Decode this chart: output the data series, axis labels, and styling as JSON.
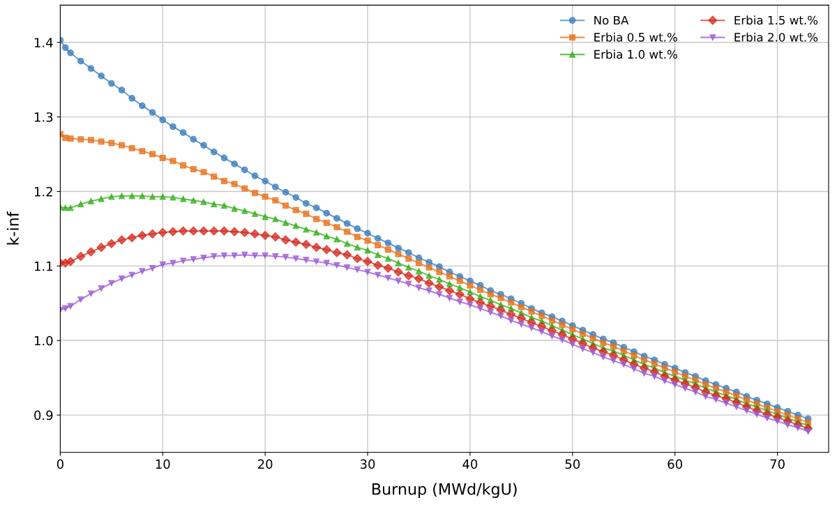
{
  "chart_data": {
    "type": "line",
    "xlabel": "Burnup (MWd/kgU)",
    "ylabel": "k-inf",
    "x": [
      0,
      0.5,
      1,
      2,
      3,
      4,
      5,
      6,
      7,
      8,
      9,
      10,
      11,
      12,
      13,
      14,
      15,
      16,
      17,
      18,
      19,
      20,
      21,
      22,
      23,
      24,
      25,
      26,
      27,
      28,
      29,
      30,
      31,
      32,
      33,
      34,
      35,
      36,
      37,
      38,
      39,
      40,
      41,
      42,
      43,
      44,
      45,
      46,
      47,
      48,
      49,
      50,
      51,
      52,
      53,
      54,
      55,
      56,
      57,
      58,
      59,
      60,
      61,
      62,
      63,
      64,
      65,
      66,
      67,
      68,
      69,
      70,
      71,
      72,
      73
    ],
    "series": [
      {
        "name": "No BA",
        "color": "#3a7ebf",
        "marker": "circle",
        "values": [
          1.403,
          1.393,
          1.386,
          1.375,
          1.365,
          1.355,
          1.345,
          1.336,
          1.325,
          1.315,
          1.306,
          1.296,
          1.287,
          1.279,
          1.27,
          1.262,
          1.253,
          1.245,
          1.237,
          1.229,
          1.221,
          1.214,
          1.206,
          1.199,
          1.192,
          1.184,
          1.178,
          1.171,
          1.164,
          1.157,
          1.15,
          1.144,
          1.137,
          1.131,
          1.124,
          1.118,
          1.111,
          1.105,
          1.099,
          1.092,
          1.086,
          1.08,
          1.074,
          1.067,
          1.062,
          1.056,
          1.05,
          1.043,
          1.037,
          1.032,
          1.026,
          1.02,
          1.014,
          1.008,
          1.002,
          0.997,
          0.991,
          0.985,
          0.979,
          0.974,
          0.968,
          0.963,
          0.957,
          0.952,
          0.946,
          0.941,
          0.936,
          0.931,
          0.925,
          0.92,
          0.915,
          0.91,
          0.905,
          0.9,
          0.895
        ]
      },
      {
        "name": "Erbia 0.5 wt.%",
        "color": "#e8701a",
        "marker": "square",
        "values": [
          1.277,
          1.272,
          1.271,
          1.27,
          1.269,
          1.267,
          1.265,
          1.262,
          1.258,
          1.254,
          1.25,
          1.245,
          1.241,
          1.235,
          1.23,
          1.226,
          1.22,
          1.214,
          1.21,
          1.204,
          1.198,
          1.193,
          1.188,
          1.181,
          1.175,
          1.17,
          1.163,
          1.158,
          1.152,
          1.146,
          1.139,
          1.134,
          1.128,
          1.122,
          1.116,
          1.11,
          1.104,
          1.098,
          1.092,
          1.086,
          1.08,
          1.074,
          1.068,
          1.062,
          1.057,
          1.051,
          1.045,
          1.039,
          1.033,
          1.027,
          1.021,
          1.015,
          1.009,
          1.003,
          0.997,
          0.992,
          0.986,
          0.98,
          0.974,
          0.969,
          0.963,
          0.958,
          0.952,
          0.947,
          0.941,
          0.936,
          0.931,
          0.926,
          0.92,
          0.915,
          0.91,
          0.905,
          0.9,
          0.895,
          0.89
        ]
      },
      {
        "name": "Erbia 1.0 wt.%",
        "color": "#33b01a",
        "marker": "triangle",
        "values": [
          1.179,
          1.178,
          1.178,
          1.183,
          1.187,
          1.19,
          1.193,
          1.194,
          1.194,
          1.194,
          1.193,
          1.193,
          1.192,
          1.19,
          1.188,
          1.186,
          1.183,
          1.181,
          1.177,
          1.174,
          1.17,
          1.166,
          1.163,
          1.158,
          1.154,
          1.149,
          1.145,
          1.14,
          1.136,
          1.13,
          1.125,
          1.121,
          1.115,
          1.11,
          1.104,
          1.098,
          1.093,
          1.087,
          1.082,
          1.076,
          1.071,
          1.065,
          1.059,
          1.054,
          1.048,
          1.043,
          1.037,
          1.031,
          1.026,
          1.02,
          1.014,
          1.008,
          1.002,
          0.996,
          0.99,
          0.986,
          0.98,
          0.974,
          0.968,
          0.963,
          0.957,
          0.952,
          0.947,
          0.942,
          0.936,
          0.931,
          0.926,
          0.921,
          0.915,
          0.911,
          0.906,
          0.901,
          0.896,
          0.891,
          0.886
        ]
      },
      {
        "name": "Erbia 1.5 wt.%",
        "color": "#d62a1e",
        "marker": "diamond",
        "values": [
          1.104,
          1.104,
          1.106,
          1.113,
          1.119,
          1.125,
          1.13,
          1.135,
          1.138,
          1.141,
          1.143,
          1.145,
          1.146,
          1.147,
          1.147,
          1.147,
          1.147,
          1.147,
          1.146,
          1.145,
          1.143,
          1.141,
          1.139,
          1.135,
          1.132,
          1.129,
          1.125,
          1.122,
          1.118,
          1.115,
          1.11,
          1.106,
          1.101,
          1.097,
          1.092,
          1.087,
          1.083,
          1.077,
          1.072,
          1.067,
          1.062,
          1.056,
          1.051,
          1.046,
          1.041,
          1.035,
          1.03,
          1.024,
          1.019,
          1.013,
          1.008,
          1.002,
          0.996,
          0.99,
          0.985,
          0.98,
          0.974,
          0.968,
          0.963,
          0.958,
          0.952,
          0.947,
          0.942,
          0.937,
          0.931,
          0.926,
          0.922,
          0.917,
          0.911,
          0.906,
          0.901,
          0.897,
          0.892,
          0.887,
          0.882
        ]
      },
      {
        "name": "Erbia 2.0 wt.%",
        "color": "#9b59d6",
        "marker": "triangle_down",
        "values": [
          1.041,
          1.043,
          1.046,
          1.055,
          1.063,
          1.07,
          1.077,
          1.083,
          1.088,
          1.093,
          1.097,
          1.102,
          1.104,
          1.107,
          1.109,
          1.111,
          1.113,
          1.114,
          1.114,
          1.115,
          1.114,
          1.114,
          1.113,
          1.112,
          1.11,
          1.108,
          1.106,
          1.104,
          1.101,
          1.098,
          1.095,
          1.092,
          1.088,
          1.084,
          1.08,
          1.076,
          1.071,
          1.067,
          1.062,
          1.057,
          1.052,
          1.048,
          1.043,
          1.038,
          1.033,
          1.027,
          1.022,
          1.017,
          1.012,
          1.006,
          1.001,
          0.995,
          0.989,
          0.984,
          0.978,
          0.973,
          0.968,
          0.962,
          0.956,
          0.952,
          0.946,
          0.941,
          0.936,
          0.931,
          0.925,
          0.921,
          0.916,
          0.911,
          0.906,
          0.901,
          0.896,
          0.892,
          0.887,
          0.883,
          0.878
        ]
      }
    ],
    "xlim": [
      0,
      75
    ],
    "xticks": [
      0,
      10,
      20,
      30,
      40,
      50,
      60,
      70
    ],
    "ylim": [
      0.85,
      1.45
    ],
    "yticks": [
      {
        "value": 0.9,
        "label": "0.9"
      },
      {
        "value": 1.0,
        "label": "1.0"
      },
      {
        "value": 1.1,
        "label": "1.1"
      },
      {
        "value": 1.2,
        "label": "1.2"
      },
      {
        "value": 1.3,
        "label": "1.3"
      },
      {
        "value": 1.4,
        "label": "1.4"
      }
    ],
    "grid": true,
    "legend": "top right",
    "line_style": "solid"
  }
}
